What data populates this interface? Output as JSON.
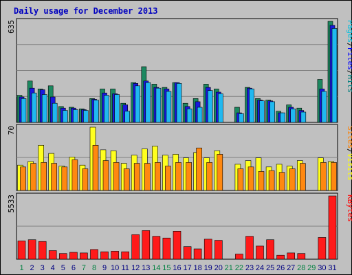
{
  "chart_data": {
    "title": "Daily usage for December 2013",
    "type": "bar",
    "categories": [
      "1",
      "2",
      "3",
      "4",
      "5",
      "6",
      "7",
      "8",
      "9",
      "10",
      "11",
      "12",
      "13",
      "14",
      "15",
      "16",
      "17",
      "18",
      "19",
      "20",
      "21",
      "22",
      "23",
      "24",
      "25",
      "26",
      "27",
      "28",
      "29",
      "30",
      "31"
    ],
    "weekend_days": [
      "1",
      "7",
      "8",
      "14",
      "15",
      "21",
      "22",
      "28",
      "29"
    ],
    "panels": [
      {
        "max_label": "635",
        "ymax": 635,
        "legend": [
          {
            "text": "Pages",
            "color": "#00c0e0"
          },
          {
            "text": "/",
            "color": "#000000"
          },
          {
            "text": "Files",
            "color": "#0000ff"
          },
          {
            "text": "/",
            "color": "#000000"
          },
          {
            "text": "Hits",
            "color": "#008080"
          }
        ],
        "series": [
          {
            "name": "Hits",
            "color": "#1c8860",
            "values": [
              170,
              260,
              210,
              230,
              100,
              95,
              85,
              150,
              210,
              210,
              120,
              250,
              350,
              240,
              220,
              250,
              120,
              150,
              240,
              210,
              0,
              95,
              220,
              150,
              140,
              70,
              110,
              90,
              0,
              270,
              635
            ]
          },
          {
            "name": "Files",
            "color": "#1818e0",
            "values": [
              160,
              215,
              205,
              160,
              90,
              90,
              80,
              145,
              185,
              180,
              110,
              245,
              260,
              220,
              210,
              250,
              100,
              130,
              220,
              190,
              0,
              60,
              215,
              140,
              135,
              60,
              95,
              75,
              0,
              210,
              610
            ]
          },
          {
            "name": "Pages",
            "color": "#20b8f0",
            "values": [
              150,
              185,
              175,
              120,
              75,
              80,
              75,
              140,
              170,
              175,
              70,
              230,
              250,
              215,
              195,
              245,
              85,
              95,
              200,
              180,
              0,
              55,
              210,
              135,
              130,
              60,
              85,
              65,
              0,
              195,
              590
            ]
          }
        ]
      },
      {
        "max_label": "70",
        "ymax": 70,
        "legend": [
          {
            "text": "Sites",
            "color": "#ff8000"
          },
          {
            "text": "/",
            "color": "#000000"
          },
          {
            "text": "Visits",
            "color": "#ffff00"
          }
        ],
        "series": [
          {
            "name": "Visits",
            "color": "#ffff20",
            "values": [
              28,
              32,
              50,
              41,
              27,
              37,
              28,
              70,
              45,
              44,
              30,
              39,
              46,
              49,
              39,
              40,
              36,
              42,
              36,
              44,
              0,
              29,
              33,
              36,
              26,
              29,
              27,
              33,
              0,
              36,
              32
            ]
          },
          {
            "name": "Sites",
            "color": "#ff8810",
            "values": [
              26,
              30,
              31,
              30,
              26,
              34,
              24,
              50,
              33,
              31,
              24,
              30,
              30,
              31,
              27,
              31,
              31,
              47,
              31,
              40,
              0,
              24,
              26,
              21,
              22,
              20,
              24,
              30,
              0,
              31,
              31
            ]
          }
        ]
      },
      {
        "max_label": "5533",
        "ymax": 5533,
        "legend": [
          {
            "text": "KBytes",
            "color": "#ff0000"
          }
        ],
        "series": [
          {
            "name": "KBytes",
            "color": "#ff1a1a",
            "values": [
              1600,
              1700,
              1550,
              750,
              500,
              600,
              550,
              850,
              650,
              700,
              650,
              2150,
              2500,
              2000,
              1850,
              2450,
              1100,
              900,
              1750,
              1650,
              0,
              450,
              2000,
              1150,
              1700,
              350,
              550,
              500,
              0,
              1900,
              5533
            ]
          }
        ]
      }
    ]
  }
}
